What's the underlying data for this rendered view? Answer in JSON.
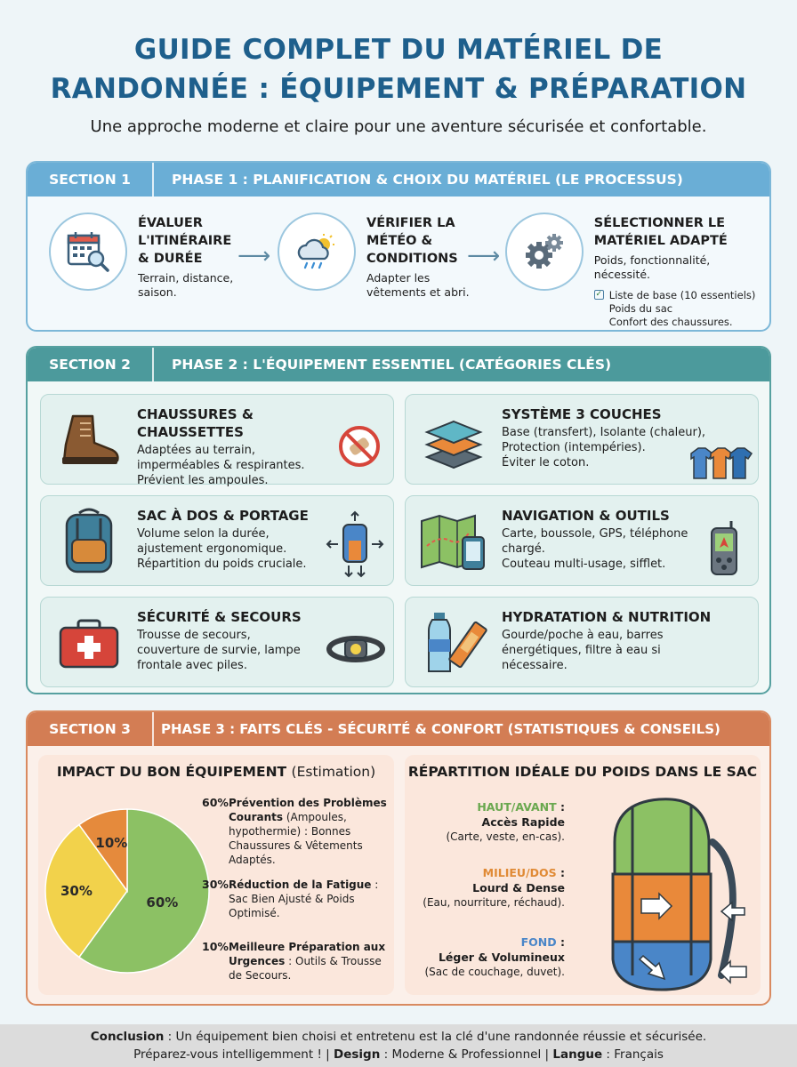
{
  "header": {
    "title_line1": "GUIDE COMPLET DU MATÉRIEL DE",
    "title_line2": "RANDONNÉE : ÉQUIPEMENT & PRÉPARATION",
    "subtitle": "Une approche moderne et claire pour une aventure sécurisée et confortable."
  },
  "section1": {
    "label": "SECTION 1",
    "title": "PHASE 1 : PLANIFICATION & CHOIX DU MATÉRIEL (LE PROCESSUS)",
    "steps": [
      {
        "title": "ÉVALUER\nL'ITINÉRAIRE\n& DURÉE",
        "desc": "Terrain, distance,\nsaison.",
        "icon": "calendar-search-icon"
      },
      {
        "title": "VÉRIFIER LA\nMÉTÉO &\nCONDITIONS",
        "desc": "Adapter les\nvêtements et abri.",
        "icon": "weather-icon"
      },
      {
        "title": "SÉLECTIONNER LE\nMATÉRIEL ADAPTÉ",
        "desc": "Poids, fonctionnalité, nécessité.",
        "icon": "gears-icon"
      }
    ],
    "checklist": [
      "Liste de base (10 essentiels)",
      "Poids du sac",
      "Confort des chaussures."
    ]
  },
  "section2": {
    "label": "SECTION 2",
    "title": "PHASE 2 : L'ÉQUIPEMENT ESSENTIEL (CATÉGORIES CLÉS)",
    "cards": [
      {
        "title": "CHAUSSURES & CHAUSSETTES",
        "desc": "Adaptées au terrain,\nimperméables & respirantes.\nPrévient les ampoules."
      },
      {
        "title": "SYSTÈME 3 COUCHES",
        "desc": "Base (transfert), Isolante (chaleur),\nProtection (intempéries).\nÉviter le coton."
      },
      {
        "title": "SAC À DOS & PORTAGE",
        "desc": "Volume selon la durée,\najustement ergonomique.\nRépartition du poids cruciale."
      },
      {
        "title": "NAVIGATION & OUTILS",
        "desc": "Carte, boussole, GPS, téléphone\nchargé.\nCouteau multi-usage, sifflet."
      },
      {
        "title": "SÉCURITÉ & SECOURS",
        "desc": "Trousse de secours,\ncouverture de survie, lampe\nfrontale avec piles."
      },
      {
        "title": "HYDRATATION & NUTRITION",
        "desc": "Gourde/poche à eau, barres\nénergétiques, filtre à eau si\nnécessaire."
      }
    ]
  },
  "section3": {
    "label": "SECTION 3",
    "title": "PHASE 3 : FAITS CLÉS - SÉCURITÉ & CONFORT (STATISTIQUES & CONSEILS)",
    "impact": {
      "title": "IMPACT DU BON ÉQUIPEMENT",
      "title_note": "(Estimation)",
      "items": [
        {
          "pct": "60%",
          "bold": "Prévention des Problèmes Courants",
          "text": " (Ampoules, hypothermie) : Bonnes Chaussures & Vêtements Adaptés."
        },
        {
          "pct": "30%",
          "bold": "Réduction de la Fatigue",
          "text": " : Sac Bien Ajusté & Poids Optimisé."
        },
        {
          "pct": "10%",
          "bold": "Meilleure Préparation aux Urgences",
          "text": " : Outils & Trousse de Secours."
        }
      ]
    },
    "weight": {
      "title": "RÉPARTITION IDÉALE DU POIDS DANS LE SAC",
      "zones": [
        {
          "name": "HAUT/AVANT",
          "sep": " :",
          "headline": "Accès Rapide",
          "detail": "(Carte, veste, en-cas).",
          "color": "#6aa84f"
        },
        {
          "name": "MILIEU/DOS",
          "sep": " :",
          "headline": "Lourd & Dense",
          "detail": "(Eau, nourriture, réchaud).",
          "color": "#e08a35"
        },
        {
          "name": "FOND",
          "sep": " :",
          "headline": "Léger & Volumineux",
          "detail": "(Sac de couchage, duvet).",
          "color": "#4a86c8"
        }
      ]
    }
  },
  "chart_data": {
    "type": "pie",
    "title": "IMPACT DU BON ÉQUIPEMENT",
    "categories": [
      "Prévention des Problèmes Courants",
      "Réduction de la Fatigue",
      "Meilleure Préparation aux Urgences"
    ],
    "values": [
      60,
      30,
      10
    ],
    "labels": [
      "60%",
      "30%",
      "10%"
    ],
    "colors": [
      "#8cc164",
      "#f2d24b",
      "#e58a3c"
    ]
  },
  "footer": {
    "conclusion_label": "Conclusion",
    "conclusion_text": " : Un équipement bien choisi et entretenu est la clé d'une randonnée réussie et sécurisée.",
    "line2_a": "Préparez-vous intelligemment ! | ",
    "design_label": "Design",
    "design_text": " : Moderne & Professionnel | ",
    "langue_label": "Langue",
    "langue_text": " : Français"
  }
}
